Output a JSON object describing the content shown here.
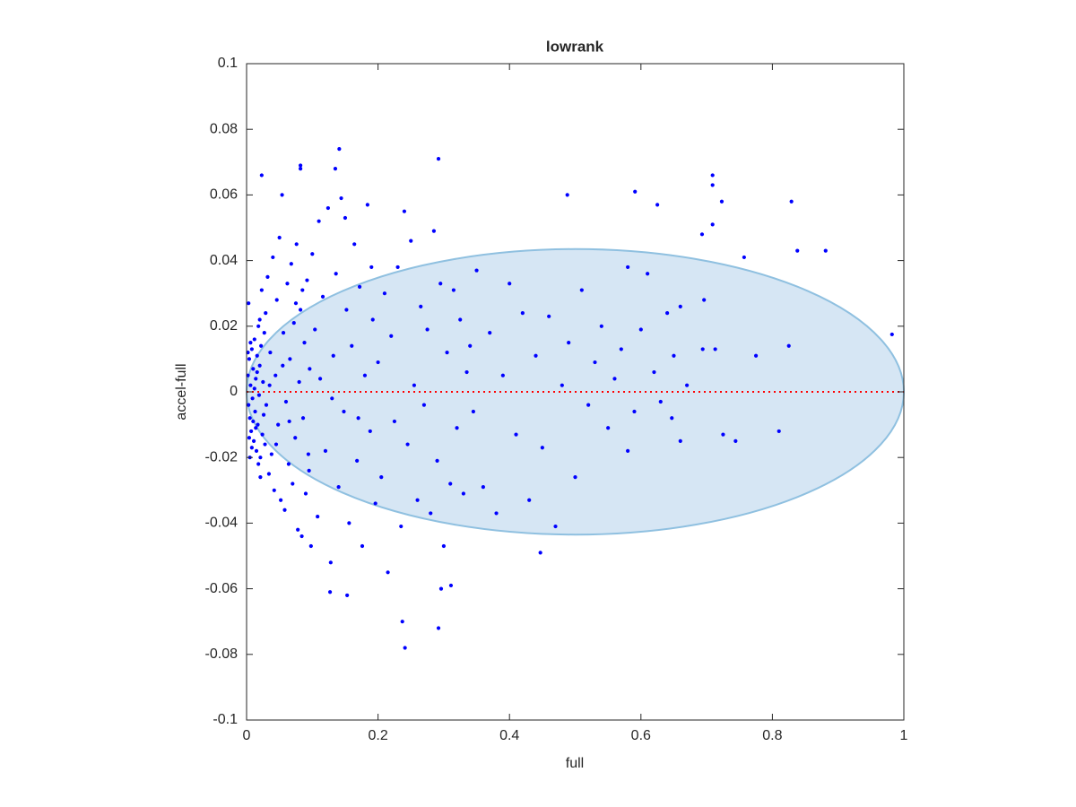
{
  "chart_data": {
    "type": "scatter",
    "title": "lowrank",
    "xlabel": "full",
    "ylabel": "accel-full",
    "color": "#0000ff",
    "x": [
      0.002,
      0.003,
      0.004,
      0.005,
      0.006,
      0.007,
      0.008,
      0.009,
      0.01,
      0.011,
      0.012,
      0.013,
      0.014,
      0.015,
      0.016,
      0.017,
      0.018,
      0.019,
      0.02,
      0.021,
      0.022,
      0.024,
      0.025,
      0.026,
      0.027,
      0.028,
      0.029,
      0.03,
      0.004,
      0.006,
      0.008,
      0.01,
      0.012,
      0.014,
      0.016,
      0.018,
      0.02,
      0.002,
      0.003,
      0.005,
      0.023,
      0.021,
      0.032,
      0.034,
      0.036,
      0.038,
      0.04,
      0.042,
      0.044,
      0.046,
      0.048,
      0.05,
      0.052,
      0.054,
      0.056,
      0.058,
      0.06,
      0.062,
      0.064,
      0.066,
      0.068,
      0.07,
      0.072,
      0.074,
      0.076,
      0.078,
      0.08,
      0.082,
      0.084,
      0.086,
      0.088,
      0.09,
      0.092,
      0.094,
      0.096,
      0.098,
      0.1,
      0.035,
      0.045,
      0.055,
      0.065,
      0.075,
      0.085,
      0.095,
      0.104,
      0.108,
      0.112,
      0.116,
      0.12,
      0.124,
      0.128,
      0.132,
      0.136,
      0.14,
      0.144,
      0.148,
      0.152,
      0.156,
      0.16,
      0.164,
      0.168,
      0.172,
      0.176,
      0.18,
      0.184,
      0.188,
      0.192,
      0.196,
      0.2,
      0.11,
      0.13,
      0.15,
      0.17,
      0.19,
      0.205,
      0.21,
      0.215,
      0.22,
      0.225,
      0.23,
      0.235,
      0.24,
      0.245,
      0.25,
      0.255,
      0.26,
      0.265,
      0.27,
      0.275,
      0.28,
      0.285,
      0.29,
      0.295,
      0.3,
      0.305,
      0.31,
      0.315,
      0.32,
      0.325,
      0.33,
      0.335,
      0.34,
      0.345,
      0.35,
      0.36,
      0.37,
      0.38,
      0.39,
      0.4,
      0.41,
      0.42,
      0.43,
      0.44,
      0.45,
      0.46,
      0.47,
      0.48,
      0.49,
      0.5,
      0.51,
      0.52,
      0.53,
      0.54,
      0.55,
      0.56,
      0.57,
      0.58,
      0.59,
      0.6,
      0.61,
      0.62,
      0.63,
      0.64,
      0.65,
      0.66,
      0.67,
      0.023,
      0.082,
      0.082,
      0.141,
      0.135,
      0.292,
      0.488,
      0.591,
      0.625,
      0.709,
      0.709,
      0.723,
      0.829,
      0.709,
      0.693,
      0.757,
      0.838,
      0.881,
      0.982,
      0.825,
      0.775,
      0.694,
      0.713,
      0.696,
      0.81,
      0.744,
      0.725,
      0.66,
      0.647,
      0.58,
      0.447,
      0.237,
      0.241,
      0.292,
      0.296,
      0.311,
      0.153,
      0.127
    ],
    "values": [
      0.005,
      -0.004,
      0.01,
      -0.008,
      0.002,
      -0.012,
      0.013,
      -0.002,
      0.007,
      -0.015,
      0.016,
      -0.006,
      0.004,
      -0.018,
      0.011,
      -0.01,
      0.02,
      -0.001,
      0.008,
      -0.02,
      0.014,
      -0.013,
      0.003,
      -0.007,
      0.018,
      -0.016,
      0.024,
      -0.004,
      -0.014,
      0.015,
      -0.017,
      -0.009,
      0.001,
      -0.011,
      0.006,
      -0.022,
      0.022,
      0.012,
      0.027,
      -0.02,
      0.031,
      -0.026,
      0.035,
      -0.025,
      0.012,
      -0.019,
      0.041,
      -0.03,
      0.005,
      0.028,
      -0.01,
      0.047,
      -0.033,
      0.06,
      0.018,
      -0.036,
      -0.003,
      0.033,
      -0.022,
      0.01,
      0.039,
      -0.028,
      0.021,
      -0.014,
      0.045,
      -0.042,
      0.003,
      0.025,
      -0.044,
      -0.008,
      0.015,
      -0.031,
      0.034,
      -0.019,
      0.007,
      -0.047,
      0.042,
      0.002,
      -0.016,
      0.008,
      -0.009,
      0.027,
      0.031,
      -0.024,
      0.019,
      -0.038,
      0.004,
      0.029,
      -0.018,
      0.056,
      -0.052,
      0.011,
      0.036,
      -0.029,
      0.059,
      -0.006,
      0.025,
      -0.04,
      0.014,
      0.045,
      -0.021,
      0.032,
      -0.047,
      0.005,
      0.057,
      -0.012,
      0.022,
      -0.034,
      0.009,
      0.052,
      -0.002,
      0.053,
      -0.008,
      0.038,
      -0.026,
      0.03,
      -0.055,
      0.017,
      -0.009,
      0.038,
      -0.041,
      0.055,
      -0.016,
      0.046,
      0.002,
      -0.033,
      0.026,
      -0.004,
      0.019,
      -0.037,
      0.049,
      -0.021,
      0.033,
      -0.047,
      0.012,
      -0.028,
      0.031,
      -0.011,
      0.022,
      -0.031,
      0.006,
      0.014,
      -0.006,
      0.037,
      -0.029,
      0.018,
      -0.037,
      0.005,
      0.033,
      -0.013,
      0.024,
      -0.033,
      0.011,
      -0.017,
      0.023,
      -0.041,
      0.002,
      0.015,
      -0.026,
      0.031,
      -0.004,
      0.009,
      0.02,
      -0.011,
      0.004,
      0.013,
      0.038,
      -0.006,
      0.019,
      0.036,
      0.006,
      -0.003,
      0.024,
      0.011,
      0.026,
      0.002,
      0.066,
      0.069,
      0.068,
      0.074,
      0.068,
      0.071,
      0.06,
      0.061,
      0.057,
      0.066,
      0.063,
      0.058,
      0.058,
      0.051,
      0.048,
      0.041,
      0.043,
      0.043,
      0.0175,
      0.014,
      0.011,
      0.013,
      0.013,
      0.028,
      -0.012,
      -0.015,
      -0.013,
      -0.015,
      -0.008,
      -0.018,
      -0.049,
      -0.07,
      -0.078,
      -0.072,
      -0.06,
      -0.059,
      -0.062,
      -0.061
    ],
    "ellipse": {
      "center": [
        0.5,
        0
      ],
      "radii": [
        0.5,
        0.0435
      ],
      "color": "#d6e6f4",
      "edge_color": "#8fc0e0"
    },
    "reference_line": {
      "y": 0,
      "color": "#ff0000"
    },
    "xlim": [
      0,
      1
    ],
    "ylim": [
      -0.1,
      0.1
    ],
    "xticks": [
      0,
      0.2,
      0.4,
      0.6,
      0.8,
      1
    ],
    "yticks": [
      -0.1,
      -0.08,
      -0.06,
      -0.04,
      -0.02,
      0,
      0.02,
      0.04,
      0.06,
      0.08,
      0.1
    ]
  }
}
